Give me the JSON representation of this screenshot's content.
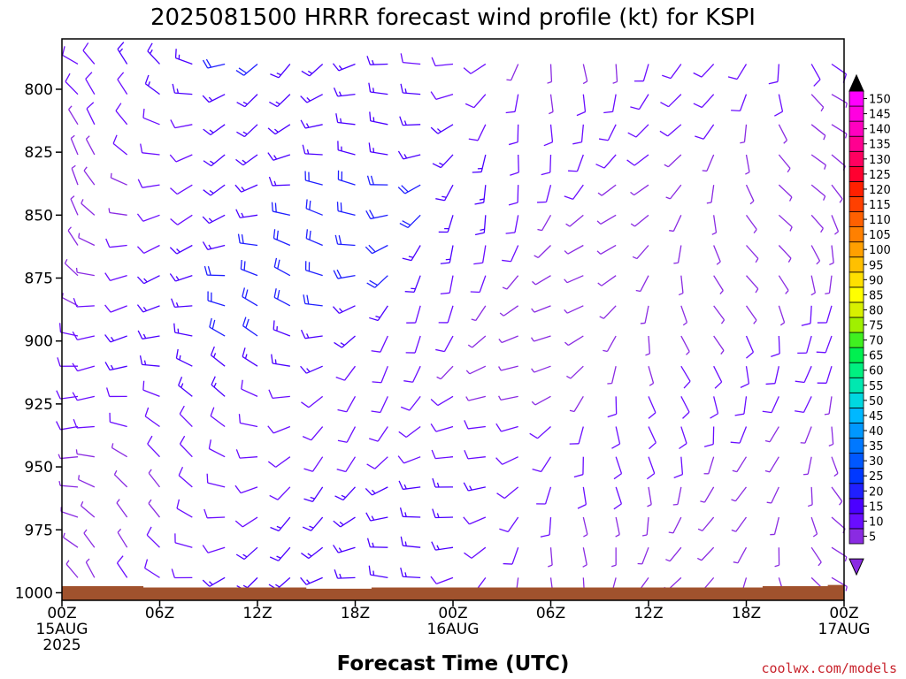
{
  "chart_data": {
    "type": "wind-barb-time-height",
    "title": "2025081500 HRRR forecast wind profile (kt) for KSPI",
    "xlabel": "Forecast Time (UTC)",
    "credit": "coolwx.com/models",
    "y_axis": {
      "range": [
        780,
        1003
      ],
      "inverted": true,
      "ticks": [
        "800",
        "825",
        "850",
        "875",
        "900",
        "925",
        "950",
        "975",
        "1000"
      ]
    },
    "x_axis": {
      "range_hours": [
        0,
        48
      ],
      "ticks": [
        {
          "h": 0,
          "l1": "00Z",
          "l2": "15AUG",
          "l3": "2025"
        },
        {
          "h": 6,
          "l1": "06Z",
          "l2": "",
          "l3": ""
        },
        {
          "h": 12,
          "l1": "12Z",
          "l2": "",
          "l3": ""
        },
        {
          "h": 18,
          "l1": "18Z",
          "l2": "",
          "l3": ""
        },
        {
          "h": 24,
          "l1": "00Z",
          "l2": "16AUG",
          "l3": ""
        },
        {
          "h": 30,
          "l1": "06Z",
          "l2": "",
          "l3": ""
        },
        {
          "h": 36,
          "l1": "12Z",
          "l2": "",
          "l3": ""
        },
        {
          "h": 42,
          "l1": "18Z",
          "l2": "",
          "l3": ""
        },
        {
          "h": 48,
          "l1": "00Z",
          "l2": "17AUG",
          "l3": ""
        }
      ]
    },
    "colorbar": {
      "units": "kt",
      "levels": [
        5,
        10,
        15,
        20,
        25,
        30,
        35,
        40,
        45,
        50,
        55,
        60,
        65,
        70,
        75,
        80,
        85,
        90,
        95,
        100,
        105,
        110,
        115,
        120,
        125,
        130,
        135,
        140,
        145,
        150
      ],
      "colors": [
        "#8a2be2",
        "#6a0dff",
        "#4b00ff",
        "#2020ff",
        "#0038ff",
        "#0058ff",
        "#0078ff",
        "#0098ff",
        "#00b8ff",
        "#00d8e0",
        "#00e8b0",
        "#00f080",
        "#00f050",
        "#40f020",
        "#a0f000",
        "#d8f000",
        "#ffff00",
        "#ffe000",
        "#ffc000",
        "#ffa000",
        "#ff8000",
        "#ff6000",
        "#ff4000",
        "#ff2000",
        "#ff0030",
        "#ff0060",
        "#ff0090",
        "#ff00c0",
        "#ff00e0",
        "#ff00ff"
      ],
      "top_arrow_color": "#000000",
      "bottom_arrow_color": "#8a2be2"
    },
    "wind_columns_hours": [
      0,
      2,
      4,
      6,
      8,
      10,
      12,
      14,
      16,
      18,
      20,
      22,
      24,
      26,
      28,
      30,
      32,
      34,
      36,
      38,
      40,
      42,
      44,
      46,
      48
    ],
    "wind_levels_hpa": [
      790,
      802,
      814,
      826,
      838,
      850,
      862,
      874,
      886,
      898,
      910,
      922,
      934,
      946,
      958,
      970,
      982,
      994
    ],
    "ground_pressure_hpa": [
      999.5,
      999.5,
      999.5,
      1000,
      1000,
      1000,
      1000,
      1000,
      1000.5,
      1000.5,
      1000,
      1000,
      1000,
      1000,
      1000,
      1000,
      1000,
      1000,
      1000,
      1000,
      1000,
      1000,
      999.5,
      999.5,
      999
    ],
    "wind_example": "winds generally 5-25 kt, westerly/northwesterly early veering to southerly late in period",
    "ground_color": "#a0522d"
  }
}
